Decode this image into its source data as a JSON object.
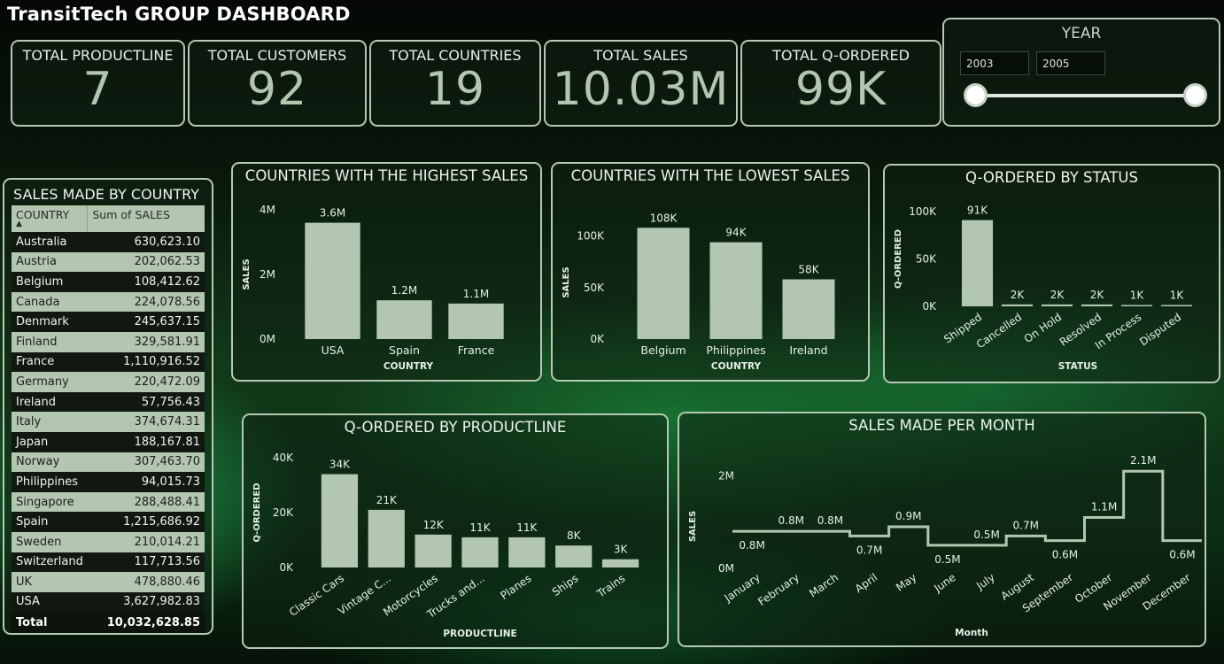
{
  "dashboard": {
    "title": "TransitTech GROUP DASHBOARD"
  },
  "kpis": [
    {
      "label": "TOTAL PRODUCTLINE",
      "value": "7"
    },
    {
      "label": "TOTAL CUSTOMERS",
      "value": "92"
    },
    {
      "label": "TOTAL COUNTRIES",
      "value": "19"
    },
    {
      "label": "TOTAL SALES",
      "value": "10.03M"
    },
    {
      "label": "TOTAL Q-ORDERED",
      "value": "99K"
    }
  ],
  "year_slicer": {
    "title": "YEAR",
    "start": "2003",
    "end": "2005"
  },
  "sales_table": {
    "title": "SALES MADE BY COUNTRY",
    "headers": [
      "COUNTRY",
      "Sum of SALES"
    ],
    "rows": [
      [
        "Australia",
        "630,623.10"
      ],
      [
        "Austria",
        "202,062.53"
      ],
      [
        "Belgium",
        "108,412.62"
      ],
      [
        "Canada",
        "224,078.56"
      ],
      [
        "Denmark",
        "245,637.15"
      ],
      [
        "Finland",
        "329,581.91"
      ],
      [
        "France",
        "1,110,916.52"
      ],
      [
        "Germany",
        "220,472.09"
      ],
      [
        "Ireland",
        "57,756.43"
      ],
      [
        "Italy",
        "374,674.31"
      ],
      [
        "Japan",
        "188,167.81"
      ],
      [
        "Norway",
        "307,463.70"
      ],
      [
        "Philippines",
        "94,015.73"
      ],
      [
        "Singapore",
        "288,488.41"
      ],
      [
        "Spain",
        "1,215,686.92"
      ],
      [
        "Sweden",
        "210,014.21"
      ],
      [
        "Switzerland",
        "117,713.56"
      ],
      [
        "UK",
        "478,880.46"
      ],
      [
        "USA",
        "3,627,982.83"
      ]
    ],
    "total_label": "Total",
    "total_value": "10,032,628.85"
  },
  "chart_data": [
    {
      "id": "highest",
      "type": "bar",
      "title": "COUNTRIES WITH THE HIGHEST SALES",
      "xlabel": "COUNTRY",
      "ylabel": "SALES",
      "categories": [
        "USA",
        "Spain",
        "France"
      ],
      "values": [
        3.6,
        1.2,
        1.1
      ],
      "data_labels": [
        "3.6M",
        "1.2M",
        "1.1M"
      ],
      "ylim": [
        0,
        4
      ],
      "yticks": [
        0,
        2,
        4
      ],
      "ytick_labels": [
        "0M",
        "2M",
        "4M"
      ]
    },
    {
      "id": "lowest",
      "type": "bar",
      "title": "COUNTRIES WITH THE LOWEST SALES",
      "xlabel": "COUNTRY",
      "ylabel": "SALES",
      "categories": [
        "Belgium",
        "Philippines",
        "Ireland"
      ],
      "values": [
        108,
        94,
        58
      ],
      "data_labels": [
        "108K",
        "94K",
        "58K"
      ],
      "ylim": [
        0,
        110
      ],
      "yticks": [
        0,
        50,
        100
      ],
      "ytick_labels": [
        "0K",
        "50K",
        "100K"
      ]
    },
    {
      "id": "status",
      "type": "bar",
      "title": "Q-ORDERED BY STATUS",
      "xlabel": "STATUS",
      "ylabel": "Q-ORDERED",
      "categories": [
        "Shipped",
        "Cancelled",
        "On Hold",
        "Resolved",
        "In Process",
        "Disputed"
      ],
      "values": [
        91,
        2,
        2,
        2,
        1,
        1
      ],
      "data_labels": [
        "91K",
        "2K",
        "2K",
        "2K",
        "1K",
        "1K"
      ],
      "ylim": [
        0,
        100
      ],
      "yticks": [
        0,
        50,
        100
      ],
      "ytick_labels": [
        "0K",
        "50K",
        "100K"
      ]
    },
    {
      "id": "productline",
      "type": "bar",
      "title": "Q-ORDERED BY PRODUCTLINE",
      "xlabel": "PRODUCTLINE",
      "ylabel": "Q-ORDERED",
      "categories": [
        "Classic Cars",
        "Vintage C...",
        "Motorcycles",
        "Trucks and...",
        "Planes",
        "Ships",
        "Trains"
      ],
      "values": [
        34,
        21,
        12,
        11,
        11,
        8,
        3
      ],
      "data_labels": [
        "34K",
        "21K",
        "12K",
        "11K",
        "11K",
        "8K",
        "3K"
      ],
      "ylim": [
        0,
        40
      ],
      "yticks": [
        0,
        20,
        40
      ],
      "ytick_labels": [
        "0K",
        "20K",
        "40K"
      ]
    },
    {
      "id": "monthly",
      "type": "line",
      "title": "SALES MADE PER MONTH",
      "xlabel": "Month",
      "ylabel": "SALES",
      "categories": [
        "January",
        "February",
        "March",
        "April",
        "May",
        "June",
        "July",
        "August",
        "September",
        "October",
        "November",
        "December"
      ],
      "values": [
        0.8,
        0.8,
        0.8,
        0.7,
        0.9,
        0.5,
        0.5,
        0.7,
        0.6,
        1.1,
        2.1,
        0.6
      ],
      "data_labels": [
        "0.8M",
        "0.8M",
        "0.8M",
        "0.7M",
        "0.9M",
        "0.5M",
        "0.5M",
        "0.7M",
        "0.6M",
        "1.1M",
        "2.1M",
        "0.6M"
      ],
      "ylim": [
        0,
        2.2
      ],
      "yticks": [
        0,
        2
      ],
      "ytick_labels": [
        "0M",
        "2M"
      ],
      "line_style": "step"
    }
  ],
  "colors": {
    "bar": "#b3c6b0",
    "border": "#b5c9b3",
    "text": "#e6efe6"
  }
}
